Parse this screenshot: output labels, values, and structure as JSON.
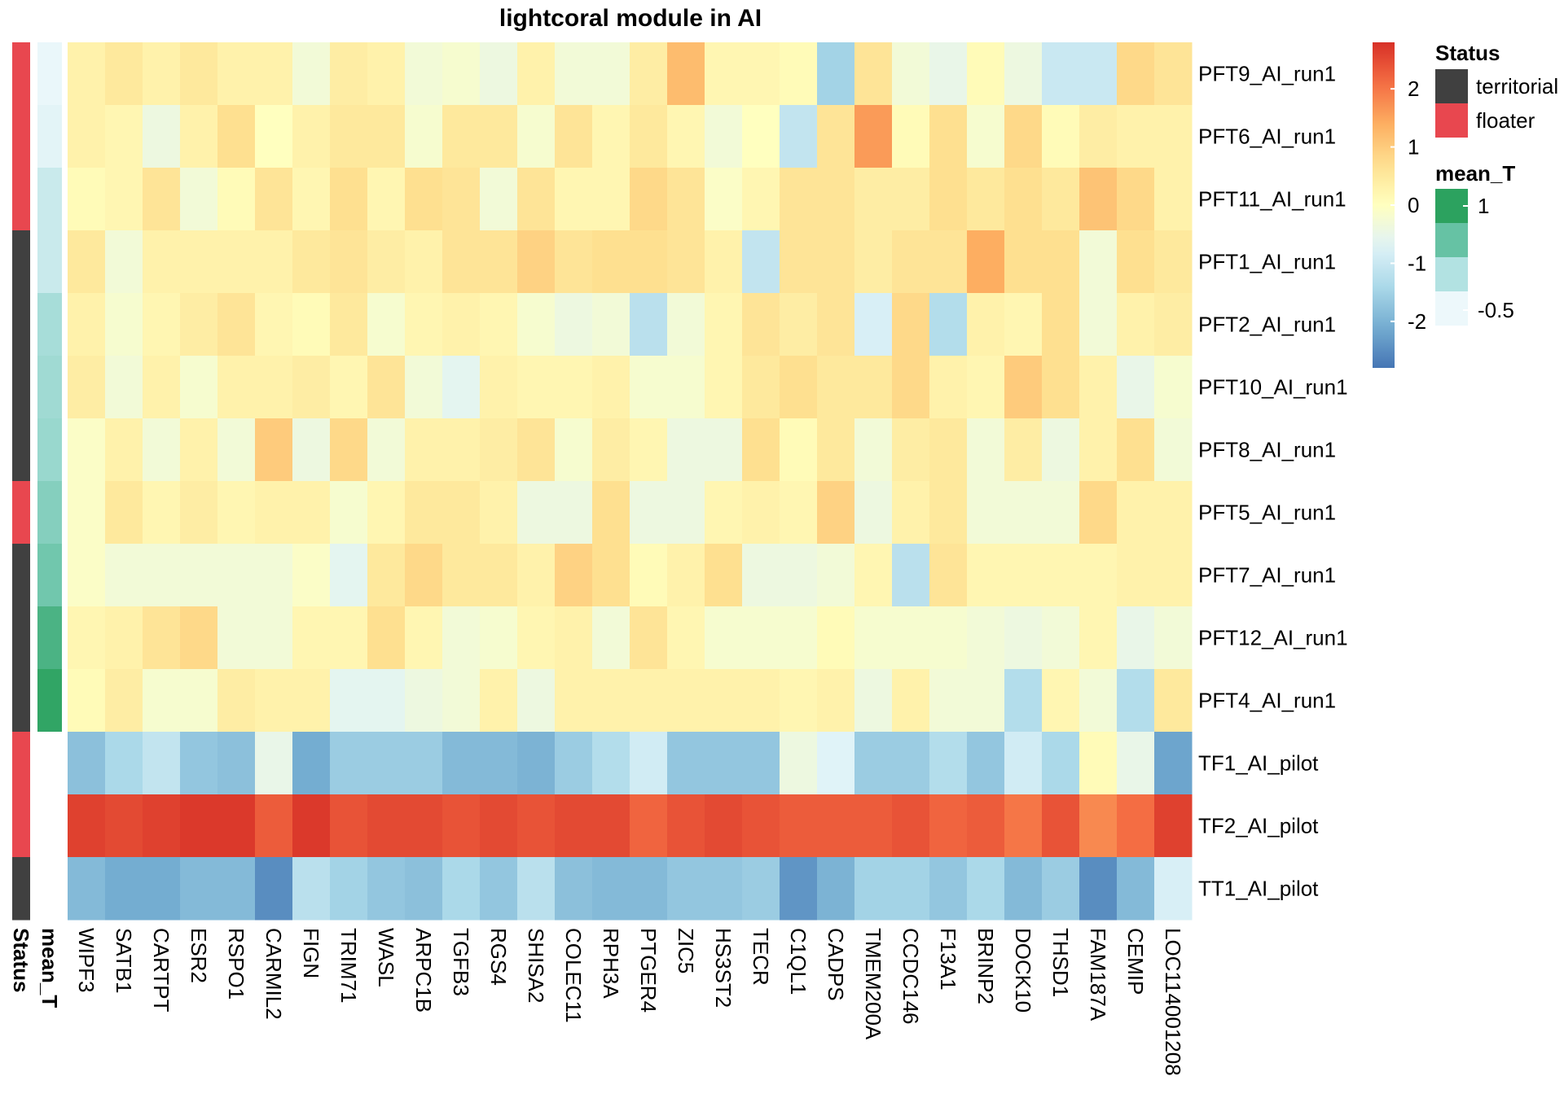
{
  "chart_data": {
    "type": "heatmap",
    "title": "lightcoral module in AI",
    "columns": [
      "WIPF3",
      "SATB1",
      "CARTPT",
      "ESR2",
      "RSPO1",
      "CARMIL2",
      "FIGN",
      "TRIM71",
      "WASL",
      "ARPC1B",
      "TGFB3",
      "RGS4",
      "SHISA2",
      "COLEC11",
      "RPH3A",
      "PTGER4",
      "ZIC5",
      "HS3ST2",
      "TECR",
      "C1QL1",
      "CADPS",
      "TMEM200A",
      "CCDC146",
      "F13A1",
      "BRINP2",
      "DOCK10",
      "THSD1",
      "FAM187A",
      "CEMIP",
      "LOC114001208"
    ],
    "rows": [
      "PFT9_AI_run1",
      "PFT6_AI_run1",
      "PFT11_AI_run1",
      "PFT1_AI_run1",
      "PFT2_AI_run1",
      "PFT10_AI_run1",
      "PFT8_AI_run1",
      "PFT5_AI_run1",
      "PFT7_AI_run1",
      "PFT12_AI_run1",
      "PFT4_AI_run1",
      "TF1_AI_pilot",
      "TF2_AI_pilot",
      "TT1_AI_pilot"
    ],
    "values": [
      [
        0.3,
        0.5,
        0.3,
        0.5,
        0.3,
        0.3,
        -0.3,
        0.4,
        0.3,
        -0.3,
        -0.2,
        -0.4,
        0.3,
        -0.3,
        -0.3,
        0.4,
        1.2,
        0.2,
        0.2,
        0.1,
        -1.5,
        0.6,
        -0.3,
        -0.5,
        0.1,
        -0.4,
        -1.0,
        -1.0,
        0.8,
        0.6
      ],
      [
        0.3,
        0.2,
        -0.4,
        0.3,
        0.7,
        0.0,
        0.3,
        0.5,
        0.5,
        -0.2,
        0.5,
        0.5,
        -0.2,
        0.6,
        0.2,
        0.5,
        0.2,
        -0.3,
        0.0,
        -1.1,
        0.6,
        1.6,
        0.1,
        0.7,
        -0.2,
        0.8,
        0.1,
        0.4,
        0.3,
        0.3
      ],
      [
        0.1,
        0.2,
        0.6,
        -0.3,
        0.1,
        0.6,
        0.2,
        0.7,
        0.2,
        0.7,
        0.6,
        -0.3,
        0.6,
        0.2,
        0.2,
        0.8,
        0.6,
        -0.1,
        0.2,
        0.6,
        0.6,
        0.4,
        0.4,
        0.7,
        0.5,
        0.7,
        0.5,
        1.1,
        0.8,
        0.3
      ],
      [
        0.5,
        -0.3,
        0.3,
        0.3,
        0.3,
        0.3,
        0.5,
        0.6,
        0.4,
        0.3,
        0.6,
        0.6,
        0.9,
        0.6,
        0.7,
        0.7,
        0.6,
        0.3,
        -1.1,
        0.6,
        0.6,
        0.4,
        0.6,
        0.6,
        1.4,
        0.7,
        0.7,
        -0.3,
        0.7,
        0.5
      ],
      [
        0.3,
        -0.2,
        0.2,
        0.4,
        0.6,
        0.2,
        0.1,
        0.5,
        -0.2,
        0.2,
        0.3,
        0.2,
        -0.2,
        -0.4,
        -0.3,
        -1.2,
        -0.3,
        0.2,
        0.6,
        0.4,
        0.6,
        -0.8,
        0.8,
        -1.3,
        0.3,
        0.2,
        0.7,
        -0.3,
        0.3,
        0.4
      ],
      [
        0.4,
        -0.3,
        0.3,
        -0.2,
        0.3,
        0.3,
        0.4,
        0.2,
        0.6,
        -0.3,
        -0.6,
        0.3,
        0.2,
        0.2,
        0.3,
        -0.2,
        -0.2,
        0.2,
        0.5,
        0.7,
        0.5,
        0.5,
        0.8,
        0.3,
        0.2,
        1.0,
        0.7,
        0.3,
        -0.5,
        -0.2
      ],
      [
        -0.1,
        0.3,
        -0.3,
        0.3,
        -0.3,
        1.0,
        -0.4,
        0.8,
        -0.3,
        0.3,
        0.3,
        0.4,
        0.6,
        -0.2,
        0.4,
        0.2,
        -0.4,
        -0.4,
        0.7,
        0.1,
        0.5,
        -0.3,
        0.4,
        0.5,
        -0.3,
        0.4,
        -0.4,
        0.3,
        0.7,
        -0.3
      ],
      [
        -0.1,
        0.5,
        0.2,
        0.4,
        0.2,
        0.3,
        0.3,
        -0.2,
        0.2,
        0.5,
        0.5,
        0.3,
        -0.4,
        -0.4,
        0.7,
        -0.4,
        -0.4,
        0.2,
        0.3,
        0.2,
        0.9,
        -0.4,
        0.3,
        0.5,
        -0.3,
        -0.3,
        -0.3,
        0.8,
        0.3,
        0.3
      ],
      [
        -0.1,
        -0.3,
        -0.3,
        -0.3,
        -0.3,
        -0.3,
        -0.1,
        -0.6,
        0.5,
        0.8,
        0.5,
        0.5,
        0.3,
        0.9,
        0.7,
        0.1,
        0.3,
        0.7,
        -0.4,
        -0.4,
        -0.3,
        0.2,
        -1.2,
        0.6,
        0.2,
        0.2,
        0.2,
        0.2,
        0.3,
        0.3
      ],
      [
        0.2,
        0.3,
        0.6,
        0.8,
        -0.3,
        -0.3,
        0.2,
        0.2,
        0.7,
        0.2,
        -0.3,
        -0.2,
        0.2,
        0.3,
        -0.3,
        0.6,
        0.2,
        -0.2,
        -0.2,
        -0.2,
        0.1,
        -0.2,
        -0.2,
        -0.2,
        -0.3,
        -0.4,
        -0.3,
        0.2,
        -0.5,
        -0.3
      ],
      [
        0.1,
        0.4,
        -0.2,
        -0.2,
        0.4,
        0.3,
        0.3,
        -0.6,
        -0.6,
        -0.4,
        -0.3,
        0.3,
        -0.4,
        0.3,
        0.3,
        0.3,
        0.3,
        0.3,
        0.3,
        0.2,
        0.3,
        -0.4,
        0.3,
        -0.3,
        -0.3,
        -1.3,
        0.2,
        -0.3,
        -1.3,
        0.5
      ],
      [
        -1.8,
        -1.4,
        -1.1,
        -1.7,
        -1.8,
        -0.5,
        -2.1,
        -1.6,
        -1.6,
        -1.6,
        -1.9,
        -1.9,
        -2.0,
        -1.6,
        -1.3,
        -0.9,
        -1.7,
        -1.7,
        -1.7,
        -0.4,
        -0.7,
        -1.6,
        -1.6,
        -1.3,
        -1.7,
        -0.9,
        -1.4,
        0.1,
        -0.5,
        -2.2
      ],
      [
        2.6,
        2.5,
        2.6,
        2.7,
        2.7,
        2.3,
        2.7,
        2.4,
        2.5,
        2.5,
        2.4,
        2.5,
        2.4,
        2.5,
        2.5,
        2.2,
        2.4,
        2.5,
        2.4,
        2.3,
        2.3,
        2.3,
        2.4,
        2.2,
        2.3,
        2.0,
        2.4,
        1.8,
        2.1,
        2.6
      ],
      [
        -1.9,
        -2.1,
        -2.1,
        -1.9,
        -1.9,
        -2.5,
        -1.2,
        -1.5,
        -1.7,
        -1.8,
        -1.4,
        -1.7,
        -1.2,
        -1.8,
        -1.9,
        -1.9,
        -1.7,
        -1.7,
        -1.6,
        -2.4,
        -2.0,
        -1.5,
        -1.5,
        -1.7,
        -1.4,
        -1.9,
        -1.6,
        -2.5,
        -1.9,
        -0.8
      ]
    ],
    "color_scale": {
      "min": -2.8,
      "max": 2.8,
      "ticks": [
        2,
        1,
        0,
        -1,
        -2
      ],
      "low": "#4575B4",
      "mid": "#FFFFBF",
      "high": "#D73027"
    },
    "annotations": {
      "Status": [
        "floater",
        "floater",
        "floater",
        "territorial",
        "territorial",
        "territorial",
        "territorial",
        "floater",
        "territorial",
        "territorial",
        "territorial",
        "floater",
        "floater",
        "territorial"
      ],
      "mean_T": [
        -0.52,
        -0.45,
        -0.2,
        -0.2,
        0.1,
        0.15,
        0.2,
        0.35,
        0.5,
        0.85,
        1.1,
        null,
        null,
        null
      ]
    },
    "legend": {
      "status_title": "Status",
      "status_items": [
        {
          "label": "territorial",
          "color": "#404040"
        },
        {
          "label": "floater",
          "color": "#E8474F"
        }
      ],
      "meanT_title": "mean_T",
      "meanT_ticks": [
        "1",
        "-0.5"
      ],
      "meanT_colors": [
        "#2CA25F",
        "#66C2A4",
        "#B2E2E2",
        "#EDF8FB"
      ]
    },
    "annotation_labels": [
      "Status",
      "mean_T"
    ]
  }
}
